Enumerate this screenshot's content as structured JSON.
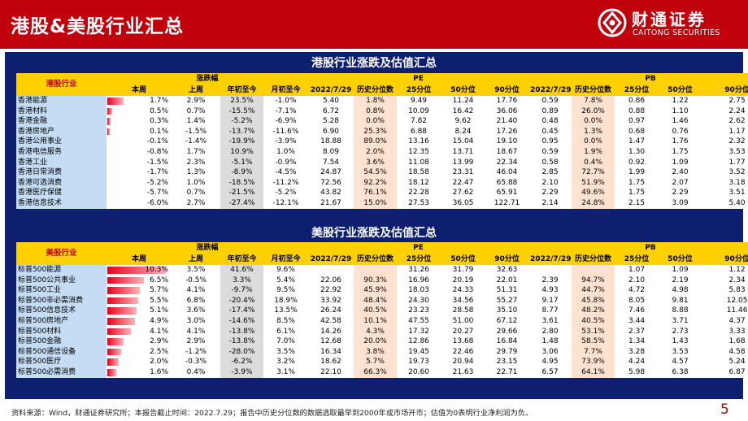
{
  "page_title": "港股&美股行业汇总",
  "brand": {
    "name_cn": "财通证券",
    "name_en": "CAITONG SECURITIES",
    "color": "#c0000a"
  },
  "group_headers": {
    "change": "涨跌幅",
    "pe": "PE",
    "pb": "PB"
  },
  "sub_headers": [
    "本周",
    "上周",
    "年初至今",
    "月初至今",
    "2022/7/29",
    "历史分位数",
    "25分位",
    "50分位",
    "90分位",
    "2022/7/29",
    "历史分位数",
    "25分位",
    "50分位",
    "90分位"
  ],
  "hk": {
    "title": "港股行业涨跌及估值汇总",
    "tag": "港股行业",
    "rows": [
      {
        "name": "香港能源",
        "w": "1.7%",
        "pw": "2.9%",
        "ytd": "23.5%",
        "mtd": "-1.0%",
        "pe": "5.40",
        "pep": "1.8%",
        "pe25": "9.49",
        "pe50": "11.24",
        "pe90": "17.76",
        "pb": "0.59",
        "pbp": "7.8%",
        "pb25": "0.86",
        "pb50": "1.22",
        "pb90": "2.75"
      },
      {
        "name": "香港材料",
        "w": "0.5%",
        "pw": "0.7%",
        "ytd": "-15.5%",
        "mtd": "-7.1%",
        "pe": "6.72",
        "pep": "0.8%",
        "pe25": "10.09",
        "pe50": "16.42",
        "pe90": "36.06",
        "pb": "0.89",
        "pbp": "26.0%",
        "pb25": "0.88",
        "pb50": "1.10",
        "pb90": "2.24"
      },
      {
        "name": "香港金融",
        "w": "0.3%",
        "pw": "1.4%",
        "ytd": "-5.2%",
        "mtd": "-6.9%",
        "pe": "5.28",
        "pep": "0.0%",
        "pe25": "7.82",
        "pe50": "9.62",
        "pe90": "21.40",
        "pb": "0.48",
        "pbp": "0.0%",
        "pb25": "0.97",
        "pb50": "1.46",
        "pb90": "2.62"
      },
      {
        "name": "香港房地产",
        "w": "0.1%",
        "pw": "-1.5%",
        "ytd": "-13.7%",
        "mtd": "-11.6%",
        "pe": "6.90",
        "pep": "25.3%",
        "pe25": "6.88",
        "pe50": "8.24",
        "pe90": "17.26",
        "pb": "0.45",
        "pbp": "1.3%",
        "pb25": "0.68",
        "pb50": "0.76",
        "pb90": "1.17"
      },
      {
        "name": "香港公用事业",
        "w": "-0.1%",
        "pw": "-1.4%",
        "ytd": "-19.9%",
        "mtd": "-3.9%",
        "pe": "18.88",
        "pep": "89.0%",
        "pe25": "13.16",
        "pe50": "15.04",
        "pe90": "19.10",
        "pb": "0.95",
        "pbp": "0.0%",
        "pb25": "1.47",
        "pb50": "1.76",
        "pb90": "2.32"
      },
      {
        "name": "香港电信服务",
        "w": "-0.8%",
        "pw": "1.7%",
        "ytd": "10.9%",
        "mtd": "1.0%",
        "pe": "8.09",
        "pep": "2.0%",
        "pe25": "12.35",
        "pe50": "13.71",
        "pe90": "18.67",
        "pb": "0.59",
        "pbp": "1.9%",
        "pb25": "1.30",
        "pb50": "1.75",
        "pb90": "3.53"
      },
      {
        "name": "香港工业",
        "w": "-1.5%",
        "pw": "2.3%",
        "ytd": "-5.1%",
        "mtd": "-0.9%",
        "pe": "7.54",
        "pep": "3.6%",
        "pe25": "11.08",
        "pe50": "13.99",
        "pe90": "22.34",
        "pb": "0.58",
        "pbp": "0.4%",
        "pb25": "0.92",
        "pb50": "1.09",
        "pb90": "1.77"
      },
      {
        "name": "香港日常消费",
        "w": "-1.7%",
        "pw": "1.3%",
        "ytd": "-8.9%",
        "mtd": "-4.5%",
        "pe": "24.87",
        "pep": "54.5%",
        "pe25": "18.58",
        "pe50": "23.31",
        "pe90": "46.04",
        "pb": "2.85",
        "pbp": "72.7%",
        "pb25": "1.99",
        "pb50": "2.40",
        "pb90": "3.52"
      },
      {
        "name": "香港可选消费",
        "w": "-5.2%",
        "pw": "1.0%",
        "ytd": "-18.5%",
        "mtd": "-11.2%",
        "pe": "72.56",
        "pep": "92.2%",
        "pe25": "18.12",
        "pe50": "22.47",
        "pe90": "65.88",
        "pb": "2.10",
        "pbp": "51.9%",
        "pb25": "1.75",
        "pb50": "2.07",
        "pb90": "3.18"
      },
      {
        "name": "香港医疗保健",
        "w": "-5.7%",
        "pw": "0.7%",
        "ytd": "-21.5%",
        "mtd": "-5.2%",
        "pe": "43.82",
        "pep": "76.1%",
        "pe25": "22.28",
        "pe50": "27.62",
        "pe90": "65.91",
        "pb": "2.29",
        "pbp": "49.6%",
        "pb25": "1.75",
        "pb50": "2.29",
        "pb90": "3.51"
      },
      {
        "name": "香港信息技术",
        "w": "-6.0%",
        "pw": "2.7%",
        "ytd": "-27.4%",
        "mtd": "-12.1%",
        "pe": "21.67",
        "pep": "15.0%",
        "pe25": "27.53",
        "pe50": "36.05",
        "pe90": "122.71",
        "pb": "2.14",
        "pbp": "24.8%",
        "pb25": "2.15",
        "pb50": "3.09",
        "pb90": "5.40"
      }
    ],
    "bars": [
      1.7,
      0.5,
      0.3,
      0.1,
      -0.1,
      -0.8,
      -1.5,
      -1.7,
      -5.2,
      -5.7,
      -6.0
    ]
  },
  "us": {
    "title": "美股行业涨跌及估值汇总",
    "tag": "美股行业",
    "rows": [
      {
        "name": "标普500能源",
        "w": "10.3%",
        "pw": "3.5%",
        "ytd": "41.6%",
        "mtd": "9.6%",
        "pe": "",
        "pep": "",
        "pe25": "31.26",
        "pe50": "31.79",
        "pe90": "32.63",
        "pb": "",
        "pbp": "",
        "pb25": "1.07",
        "pb50": "1.09",
        "pb90": "1.12"
      },
      {
        "name": "标普500公共事业",
        "w": "6.5%",
        "pw": "-0.5%",
        "ytd": "3.3%",
        "mtd": "5.4%",
        "pe": "22.06",
        "pep": "90.3%",
        "pe25": "16.96",
        "pe50": "20.19",
        "pe90": "22.01",
        "pb": "2.39",
        "pbp": "94.7%",
        "pb25": "2.10",
        "pb50": "2.19",
        "pb90": "2.34"
      },
      {
        "name": "标普500工业",
        "w": "5.7%",
        "pw": "4.1%",
        "ytd": "-9.7%",
        "mtd": "9.5%",
        "pe": "22.92",
        "pep": "45.9%",
        "pe25": "18.03",
        "pe50": "24.33",
        "pe90": "51.31",
        "pb": "4.93",
        "pbp": "44.7%",
        "pb25": "4.72",
        "pb50": "4.98",
        "pb90": "5.83"
      },
      {
        "name": "标普500非必需消费",
        "w": "5.5%",
        "pw": "6.8%",
        "ytd": "-20.4%",
        "mtd": "18.9%",
        "pe": "33.92",
        "pep": "48.4%",
        "pe25": "24.30",
        "pe50": "34.56",
        "pe90": "55.27",
        "pb": "9.17",
        "pbp": "45.8%",
        "pb25": "8.05",
        "pb50": "9.81",
        "pb90": "12.05"
      },
      {
        "name": "标普500信息技术",
        "w": "5.1%",
        "pw": "3.6%",
        "ytd": "-17.4%",
        "mtd": "13.5%",
        "pe": "26.24",
        "pep": "40.5%",
        "pe25": "23.23",
        "pe50": "28.58",
        "pe90": "35.10",
        "pb": "8.77",
        "pbp": "48.2%",
        "pb25": "7.46",
        "pb50": "8.88",
        "pb90": "11.46"
      },
      {
        "name": "标普500房地产",
        "w": "4.9%",
        "pw": "3.0%",
        "ytd": "-14.6%",
        "mtd": "8.5%",
        "pe": "42.58",
        "pep": "10.1%",
        "pe25": "47.55",
        "pe50": "51.00",
        "pe90": "67.12",
        "pb": "3.61",
        "pbp": "40.5%",
        "pb25": "3.44",
        "pb50": "3.71",
        "pb90": "4.37"
      },
      {
        "name": "标普500材料",
        "w": "4.1%",
        "pw": "4.1%",
        "ytd": "-13.8%",
        "mtd": "6.1%",
        "pe": "14.26",
        "pep": "4.3%",
        "pe25": "17.32",
        "pe50": "20.27",
        "pe90": "29.66",
        "pb": "2.80",
        "pbp": "53.1%",
        "pb25": "2.37",
        "pb50": "2.73",
        "pb90": "3.33"
      },
      {
        "name": "标普500金融",
        "w": "2.9%",
        "pw": "2.9%",
        "ytd": "-13.8%",
        "mtd": "7.0%",
        "pe": "12.68",
        "pep": "20.0%",
        "pe25": "12.86",
        "pe50": "13.68",
        "pe90": "16.84",
        "pb": "1.48",
        "pbp": "58.5%",
        "pb25": "1.34",
        "pb50": "1.43",
        "pb90": "1.68"
      },
      {
        "name": "标普500通信设备",
        "w": "2.5%",
        "pw": "-1.2%",
        "ytd": "-28.0%",
        "mtd": "3.5%",
        "pe": "16.34",
        "pep": "3.8%",
        "pe25": "19.45",
        "pe50": "22.46",
        "pe90": "29.79",
        "pb": "3.06",
        "pbp": "7.7%",
        "pb25": "3.28",
        "pb50": "3.53",
        "pb90": "4.58"
      },
      {
        "name": "标普500医疗",
        "w": "2.0%",
        "pw": "-0.3%",
        "ytd": "-6.2%",
        "mtd": "3.2%",
        "pe": "18.62",
        "pep": "5.7%",
        "pe25": "19.73",
        "pe50": "20.94",
        "pe90": "23.15",
        "pb": "4.95",
        "pbp": "73.9%",
        "pb25": "4.24",
        "pb50": "4.57",
        "pb90": "5.24"
      },
      {
        "name": "标普500必需消费",
        "w": "1.6%",
        "pw": "0.4%",
        "ytd": "-3.9%",
        "mtd": "3.1%",
        "pe": "22.10",
        "pep": "66.3%",
        "pe25": "20.60",
        "pe50": "21.63",
        "pe90": "22.71",
        "pb": "6.57",
        "pbp": "64.1%",
        "pb25": "5.98",
        "pb50": "6.38",
        "pb90": "6.87"
      }
    ],
    "bars": [
      10.3,
      6.5,
      5.7,
      5.5,
      5.1,
      4.9,
      4.1,
      2.9,
      2.5,
      2.0,
      1.6
    ]
  },
  "footer": "资料来源：Wind，财通证券研究所；本报告截止时间：2022.7.29；报告中历史分位数的数据选取最早到2000年或市场开市；估值为0表明行业净利润为负。",
  "page_number": "5"
}
